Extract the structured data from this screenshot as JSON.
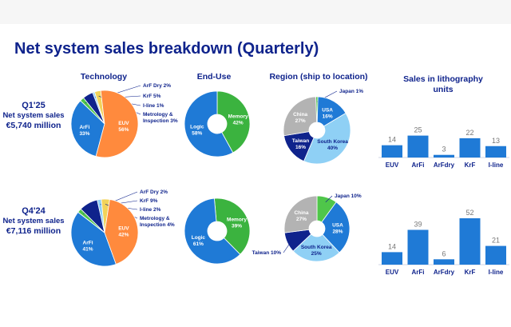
{
  "title": "Net system sales breakdown (Quarterly)",
  "headers": {
    "technology": "Technology",
    "end_use": "End-Use",
    "region": "Region (ship to location)",
    "units_line1": "Sales in lithography",
    "units_line2": "units"
  },
  "rows": [
    {
      "period": "Q1'25",
      "sales_label": "Net system sales",
      "sales_value": "€5,740 million"
    },
    {
      "period": "Q4'24",
      "sales_label": "Net system sales",
      "sales_value": "€7,116 million"
    }
  ],
  "colors": {
    "euv": "#ff8a3d",
    "arfi": "#1f7ad6",
    "arf_dry": "#4fc64a",
    "krf": "#0f238c",
    "iline": "#8fd0f5",
    "metrology": "#f2d35a",
    "memory": "#3bb33f",
    "logic": "#1f7ad6",
    "china": "#b3b3b3",
    "usa": "#1f7ad6",
    "south_korea": "#8fd0f5",
    "taiwan": "#0f238c",
    "japan": "#4fc64a",
    "bar": "#1f7ad6"
  },
  "chart_data": [
    {
      "id": "technology_q1_25",
      "type": "pie",
      "slices": [
        {
          "name": "ArFi",
          "value": 33,
          "label_name": "ArFi",
          "label_pct": "33%",
          "callout": false
        },
        {
          "name": "ArF Dry",
          "value": 2,
          "callout_text": "ArF Dry 2%",
          "callout": true
        },
        {
          "name": "KrF",
          "value": 5,
          "callout_text": "KrF 5%",
          "callout": true
        },
        {
          "name": "I-line",
          "value": 1,
          "callout_text": "I-line 1%",
          "callout": true
        },
        {
          "name": "Metrology & Inspection",
          "value": 3,
          "callout_lines": [
            "Metrology &",
            "Inspection 3%"
          ],
          "callout": true
        },
        {
          "name": "EUV",
          "value": 56,
          "label_name": "EUV",
          "label_pct": "56%",
          "callout": false
        }
      ]
    },
    {
      "id": "end_use_q1_25",
      "type": "pie",
      "slices": [
        {
          "name": "Memory",
          "value": 42,
          "label_name": "Memory",
          "label_pct": "42%"
        },
        {
          "name": "Logic",
          "value": 58,
          "label_name": "Logic",
          "label_pct": "58%"
        }
      ]
    },
    {
      "id": "region_q1_25",
      "type": "pie",
      "slices": [
        {
          "name": "Japan",
          "value": 1,
          "callout_text": "Japan 1%",
          "callout": true
        },
        {
          "name": "USA",
          "value": 16,
          "label_name": "USA",
          "label_pct": "16%"
        },
        {
          "name": "South Korea",
          "value": 40,
          "label_name": "South Korea",
          "label_pct": "40%"
        },
        {
          "name": "Taiwan",
          "value": 16,
          "label_name": "Taiwan",
          "label_pct": "16%"
        },
        {
          "name": "China",
          "value": 27,
          "label_name": "China",
          "label_pct": "27%"
        }
      ]
    },
    {
      "id": "units_q1_25",
      "type": "bar",
      "categories": [
        "EUV",
        "ArFi",
        "ArFdry",
        "KrF",
        "I-line"
      ],
      "values": [
        14,
        25,
        3,
        22,
        13
      ],
      "ylim": [
        0,
        52
      ]
    },
    {
      "id": "technology_q4_24",
      "type": "pie",
      "slices": [
        {
          "name": "ArFi",
          "value": 41,
          "label_name": "ArFi",
          "label_pct": "41%",
          "callout": false
        },
        {
          "name": "ArF Dry",
          "value": 2,
          "callout_text": "ArF Dry 2%",
          "callout": true
        },
        {
          "name": "KrF",
          "value": 9,
          "callout_text": "KrF 9%",
          "callout": true
        },
        {
          "name": "I-line",
          "value": 2,
          "callout_text": "I-line 2%",
          "callout": true
        },
        {
          "name": "Metrology & Inspection",
          "value": 4,
          "callout_lines": [
            "Metrology &",
            "Inspection 4%"
          ],
          "callout": true
        },
        {
          "name": "EUV",
          "value": 42,
          "label_name": "EUV",
          "label_pct": "42%",
          "callout": false
        }
      ]
    },
    {
      "id": "end_use_q4_24",
      "type": "pie",
      "slices": [
        {
          "name": "Memory",
          "value": 39,
          "label_name": "Memory",
          "label_pct": "39%"
        },
        {
          "name": "Logic",
          "value": 61,
          "label_name": "Logic",
          "label_pct": "61%"
        }
      ]
    },
    {
      "id": "region_q4_24",
      "type": "pie",
      "slices": [
        {
          "name": "Japan",
          "value": 10,
          "callout_text": "Japan 10%",
          "callout": true
        },
        {
          "name": "USA",
          "value": 28,
          "label_name": "USA",
          "label_pct": "28%"
        },
        {
          "name": "South Korea",
          "value": 25,
          "label_name": "South Korea",
          "label_pct": "25%"
        },
        {
          "name": "Taiwan",
          "value": 10,
          "callout_text": "Taiwan 10%",
          "callout": true
        },
        {
          "name": "China",
          "value": 27,
          "label_name": "China",
          "label_pct": "27%"
        }
      ]
    },
    {
      "id": "units_q4_24",
      "type": "bar",
      "categories": [
        "EUV",
        "ArFi",
        "ArFdry",
        "KrF",
        "I-line"
      ],
      "values": [
        14,
        39,
        6,
        52,
        21
      ],
      "ylim": [
        0,
        52
      ]
    }
  ]
}
